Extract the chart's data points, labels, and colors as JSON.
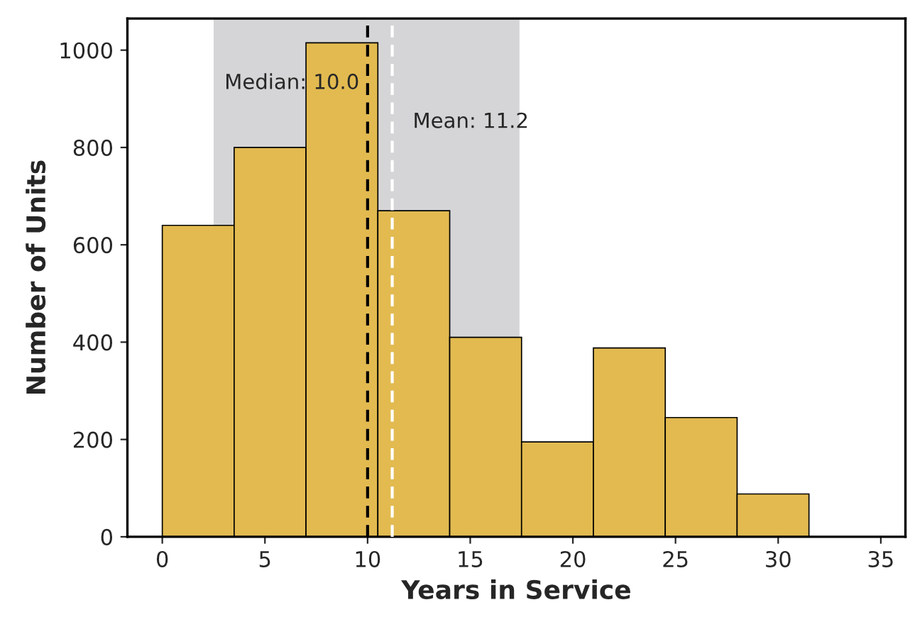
{
  "chart_data": {
    "type": "histogram",
    "xlabel": "Years in Service",
    "ylabel": "Number of Units",
    "bins": [
      0,
      3.5,
      7,
      10.5,
      14,
      17.5,
      21,
      24.5,
      28,
      31.5
    ],
    "values": [
      640,
      800,
      1015,
      670,
      410,
      195,
      388,
      245,
      88
    ],
    "color": "#e2ba50",
    "xlim": [
      -1.7,
      36.2
    ],
    "xticks": [
      0,
      5,
      10,
      15,
      20,
      25,
      30,
      35
    ],
    "ylim": [
      0,
      1065
    ],
    "yticks": [
      0,
      200,
      400,
      600,
      800,
      1000
    ],
    "grid": false,
    "legend": false,
    "bands": [
      {
        "axis": "x",
        "from": 2.5,
        "to": 17.4,
        "color": "#d5d5d7"
      }
    ],
    "ref_lines": [
      {
        "axis": "x",
        "value": 10.0,
        "label": "Median: 10.0",
        "color": "#000000",
        "line_style": "dashed"
      },
      {
        "axis": "x",
        "value": 11.2,
        "label": "Mean: 11.2",
        "color": "#ffffff",
        "line_style": "dashed"
      }
    ]
  }
}
